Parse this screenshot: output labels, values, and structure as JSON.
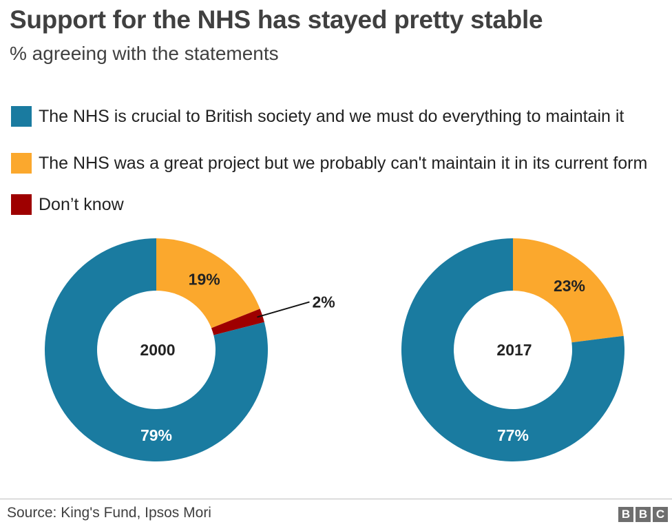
{
  "title": "Support for the NHS has stayed pretty stable",
  "subtitle": "% agreeing with the statements",
  "legend": [
    {
      "label": "The NHS is crucial to British society and we must do everything to maintain it",
      "color": "#1a7ba0"
    },
    {
      "label": "The NHS was a great project but we probably can't maintain it in its current form",
      "color": "#fba82d"
    },
    {
      "label": "Don’t know",
      "color": "#9e0000"
    }
  ],
  "source": "Source: King's Fund, Ipsos Mori",
  "logo": {
    "letters": [
      "B",
      "B",
      "C"
    ]
  },
  "chart_data": [
    {
      "type": "pie",
      "center_label": "2000",
      "series": [
        {
          "value": 79,
          "label": "79%",
          "color": "#1a7ba0"
        },
        {
          "value": 19,
          "label": "19%",
          "color": "#fba82d"
        },
        {
          "value": 2,
          "label": "2%",
          "color": "#9e0000"
        }
      ]
    },
    {
      "type": "pie",
      "center_label": "2017",
      "series": [
        {
          "value": 77,
          "label": "77%",
          "color": "#1a7ba0"
        },
        {
          "value": 23,
          "label": "23%",
          "color": "#fba82d"
        }
      ]
    }
  ]
}
